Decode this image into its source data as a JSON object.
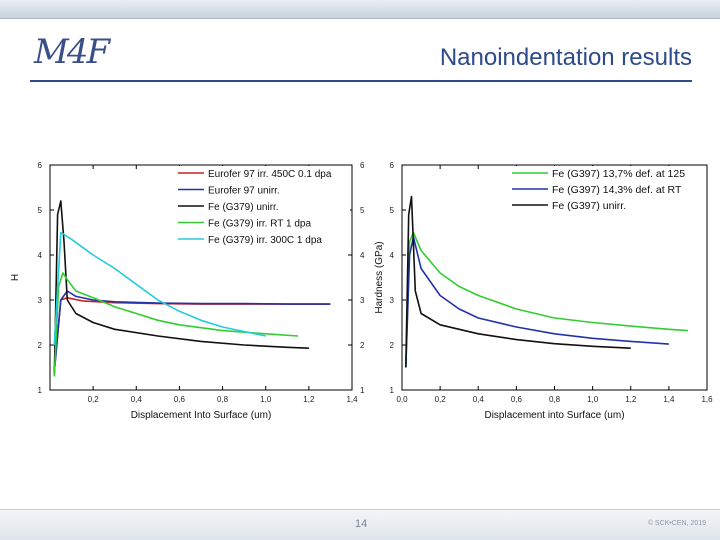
{
  "slide": {
    "logo_text": "M4F",
    "title": "Nanoindentation results",
    "page_number": "14",
    "copyright": "© SCK•CEN, 2019",
    "accent_color": "#2d4a8a"
  },
  "chart_data": [
    {
      "type": "line",
      "xlabel": "Displacement Into Surface (um)",
      "ylabel": "H",
      "xlim": [
        0,
        1.4
      ],
      "ylim": [
        1,
        6
      ],
      "xticks": [
        "0,2",
        "0,4",
        "0,6",
        "0,8",
        "1,0",
        "1,2",
        "1,4"
      ],
      "yticks": [
        "1",
        "2",
        "3",
        "4",
        "5",
        "6"
      ],
      "legend_position": "top-right",
      "series": [
        {
          "name": "Eurofer 97 irr. 450C 0.1 dpa",
          "color": "#cc2222",
          "x": [
            0.02,
            0.05,
            0.08,
            0.15,
            0.3,
            0.5,
            0.7,
            0.9,
            1.1,
            1.3
          ],
          "y": [
            1.4,
            3.0,
            3.05,
            2.98,
            2.94,
            2.92,
            2.91,
            2.91,
            2.91,
            2.91
          ]
        },
        {
          "name": "Eurofer 97 unirr.",
          "color": "#2233aa",
          "x": [
            0.02,
            0.05,
            0.08,
            0.12,
            0.2,
            0.3,
            0.5,
            0.7,
            0.9,
            1.1,
            1.3
          ],
          "y": [
            1.4,
            3.0,
            3.2,
            3.08,
            3.0,
            2.96,
            2.93,
            2.92,
            2.92,
            2.91,
            2.91
          ]
        },
        {
          "name": "Fe (G379) unirr.",
          "color": "#111111",
          "x": [
            0.02,
            0.035,
            0.05,
            0.065,
            0.08,
            0.12,
            0.2,
            0.3,
            0.5,
            0.7,
            0.9,
            1.1,
            1.2
          ],
          "y": [
            1.3,
            4.9,
            5.2,
            4.3,
            3.0,
            2.7,
            2.5,
            2.35,
            2.2,
            2.08,
            2.0,
            1.95,
            1.93
          ]
        },
        {
          "name": "Fe (G379) irr. RT 1 dpa",
          "color": "#33cc33",
          "x": [
            0.02,
            0.04,
            0.06,
            0.08,
            0.12,
            0.2,
            0.3,
            0.4,
            0.5,
            0.6,
            0.8,
            1.0,
            1.15
          ],
          "y": [
            1.3,
            3.3,
            3.6,
            3.45,
            3.2,
            3.05,
            2.85,
            2.7,
            2.55,
            2.45,
            2.32,
            2.25,
            2.2
          ]
        },
        {
          "name": "Fe (G379) irr. 300C 1 dpa",
          "color": "#22ccdd",
          "x": [
            0.02,
            0.05,
            0.1,
            0.2,
            0.3,
            0.4,
            0.5,
            0.6,
            0.7,
            0.8,
            0.9,
            1.0
          ],
          "y": [
            2.0,
            4.5,
            4.35,
            4.0,
            3.7,
            3.35,
            3.0,
            2.75,
            2.55,
            2.4,
            2.3,
            2.2
          ]
        }
      ]
    },
    {
      "type": "line",
      "xlabel": "Displacement into Surface (um)",
      "ylabel": "Hardness (GPa)",
      "xlim": [
        0,
        1.6
      ],
      "ylim": [
        1,
        6
      ],
      "xticks": [
        "0,0",
        "0,2",
        "0,4",
        "0,6",
        "0,8",
        "1,0",
        "1,2",
        "1,4",
        "1,6"
      ],
      "yticks": [
        "1",
        "2",
        "3",
        "4",
        "5",
        "6"
      ],
      "legend_position": "top-right",
      "series": [
        {
          "name": "Fe (G397) 13,7% def. at 125",
          "color": "#33cc33",
          "x": [
            0.02,
            0.04,
            0.06,
            0.1,
            0.2,
            0.3,
            0.4,
            0.6,
            0.8,
            1.0,
            1.2,
            1.4,
            1.5
          ],
          "y": [
            1.5,
            4.3,
            4.5,
            4.1,
            3.6,
            3.3,
            3.1,
            2.8,
            2.6,
            2.5,
            2.42,
            2.35,
            2.32
          ]
        },
        {
          "name": "Fe (G397) 14,3% def. at RT",
          "color": "#2233aa",
          "x": [
            0.02,
            0.04,
            0.06,
            0.1,
            0.2,
            0.3,
            0.4,
            0.6,
            0.8,
            1.0,
            1.2,
            1.4
          ],
          "y": [
            1.5,
            4.0,
            4.4,
            3.7,
            3.1,
            2.8,
            2.6,
            2.4,
            2.25,
            2.15,
            2.08,
            2.02
          ]
        },
        {
          "name": "Fe (G397) unirr.",
          "color": "#111111",
          "x": [
            0.02,
            0.035,
            0.05,
            0.07,
            0.1,
            0.2,
            0.4,
            0.6,
            0.8,
            1.0,
            1.2
          ],
          "y": [
            1.5,
            4.9,
            5.3,
            3.2,
            2.7,
            2.45,
            2.25,
            2.12,
            2.03,
            1.97,
            1.93
          ]
        }
      ]
    }
  ]
}
